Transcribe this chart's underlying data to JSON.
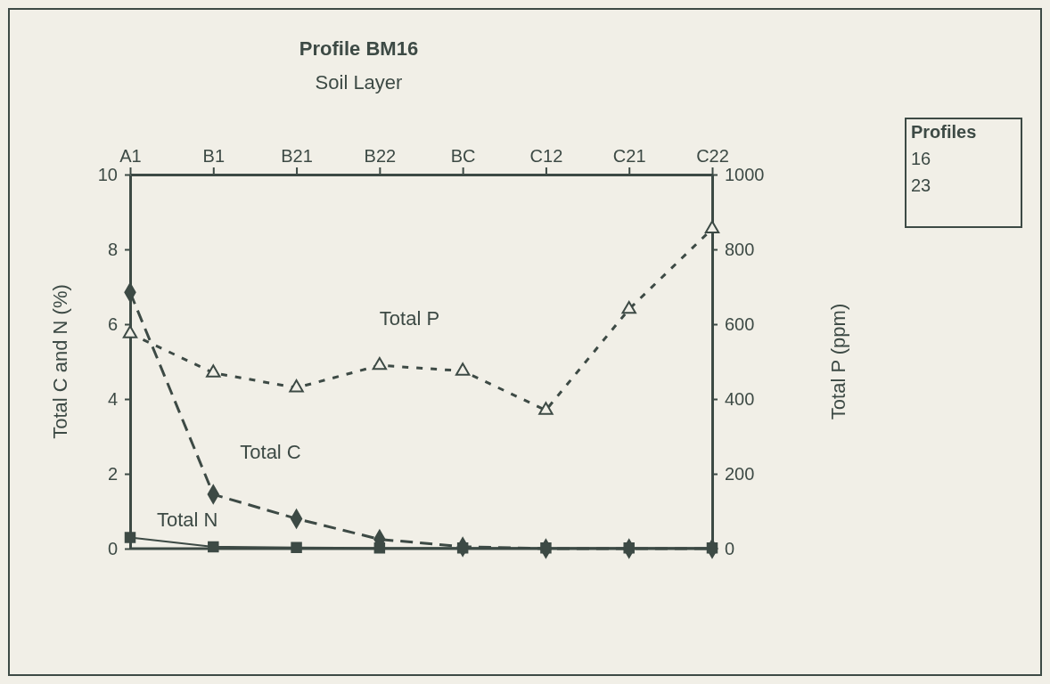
{
  "chart_data": {
    "type": "line",
    "title": "Profile BM16",
    "xlabel": "Soil Layer",
    "ylabel": "Total C and N (%)",
    "y2label": "Total P (ppm)",
    "categories": [
      "A1",
      "B1",
      "B21",
      "B22",
      "BC",
      "C12",
      "C21",
      "C22"
    ],
    "ylim": [
      0,
      10
    ],
    "yticks": [
      0,
      2,
      4,
      6,
      8,
      10
    ],
    "y2lim": [
      0,
      1000
    ],
    "y2ticks": [
      0,
      200,
      400,
      600,
      800,
      1000
    ],
    "series": [
      {
        "name": "Total C",
        "color": "#3d4a45",
        "marker": "diamond",
        "line_style": "dashed",
        "values": [
          6.85,
          1.45,
          0.8,
          0.25,
          0.05,
          0,
          0,
          0
        ]
      },
      {
        "name": "Total N",
        "color": "#3d4a45",
        "marker": "square",
        "line_style": "solid",
        "values": [
          0.3,
          0.05,
          0.03,
          0.02,
          0.02,
          0.02,
          0.02,
          0.02
        ]
      },
      {
        "name": "Total P",
        "color": "#3d4a45",
        "marker": "triangle",
        "line_style": "dotted",
        "axis": "y2",
        "values": [
          575,
          470,
          430,
          490,
          475,
          370,
          640,
          855
        ]
      }
    ],
    "annotations": [
      "Profiles",
      "16",
      "23"
    ],
    "grid": false
  }
}
